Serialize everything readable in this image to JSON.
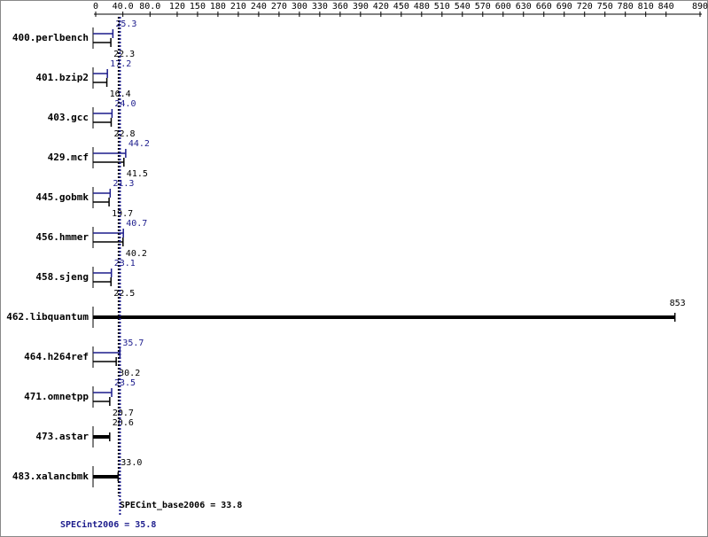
{
  "chart_data": {
    "type": "spec-ratio",
    "categories": [
      "400.perlbench",
      "401.bzip2",
      "403.gcc",
      "429.mcf",
      "445.gobmk",
      "456.hmmer",
      "458.sjeng",
      "462.libquantum",
      "464.h264ref",
      "471.omnetpp",
      "473.astar",
      "483.xalancbmk"
    ],
    "series": [
      {
        "color": "#1c1c8c",
        "values": [
          25.3,
          17.2,
          24.0,
          44.2,
          21.3,
          40.7,
          23.1,
          null,
          35.7,
          23.5,
          null,
          null
        ],
        "value_labels": [
          "25.3",
          "17.2",
          "24.0",
          "44.2",
          "21.3",
          "40.7",
          "23.1",
          null,
          "35.7",
          "23.5",
          null,
          null
        ]
      },
      {
        "color": "#000000",
        "values": [
          22.3,
          16.4,
          22.8,
          41.5,
          19.7,
          40.2,
          22.5,
          853,
          30.2,
          20.7,
          20.6,
          33.0
        ],
        "value_labels": [
          "22.3",
          "16.4",
          "22.8",
          "41.5",
          "19.7",
          "40.2",
          "22.5",
          "853",
          "30.2",
          "20.7",
          "20.6",
          "33.0"
        ]
      }
    ],
    "xlim": [
      0,
      890
    ],
    "xticks": [
      0,
      {
        "value": 40,
        "label": "40.0"
      },
      {
        "value": 80,
        "label": "80.0"
      },
      120,
      150,
      180,
      210,
      240,
      270,
      300,
      330,
      360,
      390,
      420,
      450,
      480,
      510,
      540,
      570,
      600,
      630,
      660,
      690,
      720,
      750,
      780,
      810,
      840,
      890
    ],
    "summary": [
      {
        "text": "SPECint_base2006 = 33.8",
        "value": 33.8,
        "color": "#000000"
      },
      {
        "text": "SPECint2006 = 35.8",
        "value": 35.8,
        "color": "#1c1c8c"
      }
    ]
  }
}
